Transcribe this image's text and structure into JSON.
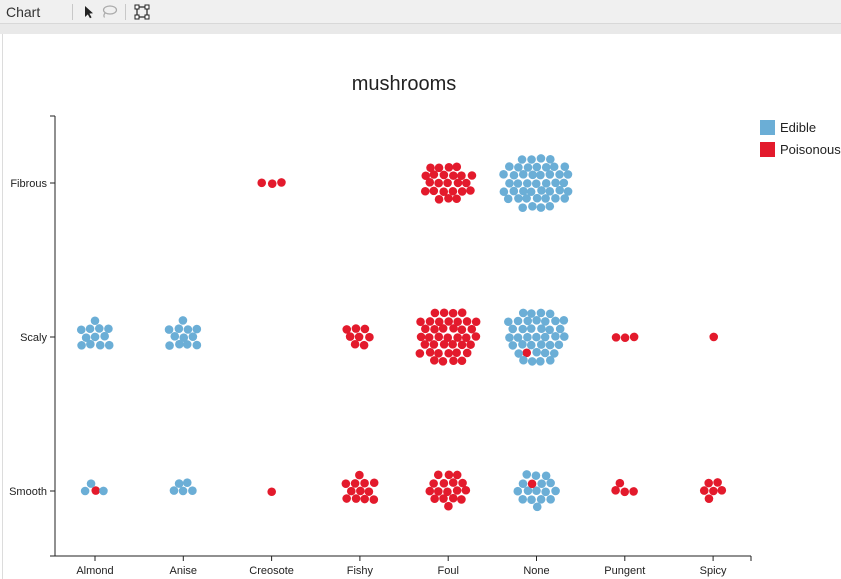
{
  "toolbar": {
    "title": "Chart",
    "tools": [
      {
        "icon": "pointer-select-icon"
      },
      {
        "icon": "lasso-select-icon"
      },
      {
        "icon": "box-select-icon"
      }
    ]
  },
  "colors": {
    "edible": "#6baed6",
    "poisonous": "#e31a2c",
    "axis": "#222222"
  },
  "chart_data": {
    "type": "scatter",
    "subtype": "beeswarm",
    "title": "mushrooms",
    "x_categories": [
      "Almond",
      "Anise",
      "Creosote",
      "Fishy",
      "Foul",
      "None",
      "Pungent",
      "Spicy"
    ],
    "y_categories": [
      "Fibrous",
      "Scaly",
      "Smooth"
    ],
    "legend": {
      "placement": "top-right",
      "entries": [
        {
          "key": "edible",
          "label": "Edible"
        },
        {
          "key": "poisonous",
          "label": "Poisonous"
        }
      ]
    },
    "grid": false,
    "cells": [
      {
        "x": "Creosote",
        "y": "Fibrous",
        "edible": 0,
        "poisonous": 3
      },
      {
        "x": "Foul",
        "y": "Fibrous",
        "edible": 0,
        "poisonous": 24
      },
      {
        "x": "None",
        "y": "Fibrous",
        "edible": 45,
        "poisonous": 0
      },
      {
        "x": "Almond",
        "y": "Scaly",
        "edible": 12,
        "poisonous": 0
      },
      {
        "x": "Anise",
        "y": "Scaly",
        "edible": 12,
        "poisonous": 0
      },
      {
        "x": "Fishy",
        "y": "Scaly",
        "edible": 0,
        "poisonous": 8
      },
      {
        "x": "Foul",
        "y": "Scaly",
        "edible": 0,
        "poisonous": 40
      },
      {
        "x": "None",
        "y": "Scaly",
        "edible": 38,
        "poisonous": 1
      },
      {
        "x": "Pungent",
        "y": "Scaly",
        "edible": 0,
        "poisonous": 3
      },
      {
        "x": "Spicy",
        "y": "Scaly",
        "edible": 0,
        "poisonous": 1
      },
      {
        "x": "Almond",
        "y": "Smooth",
        "edible": 3,
        "poisonous": 1
      },
      {
        "x": "Anise",
        "y": "Smooth",
        "edible": 5,
        "poisonous": 0
      },
      {
        "x": "Creosote",
        "y": "Smooth",
        "edible": 0,
        "poisonous": 1
      },
      {
        "x": "Fishy",
        "y": "Smooth",
        "edible": 0,
        "poisonous": 12
      },
      {
        "x": "Foul",
        "y": "Smooth",
        "edible": 0,
        "poisonous": 17
      },
      {
        "x": "None",
        "y": "Smooth",
        "edible": 16,
        "poisonous": 1
      },
      {
        "x": "Pungent",
        "y": "Smooth",
        "edible": 0,
        "poisonous": 4
      },
      {
        "x": "Spicy",
        "y": "Smooth",
        "edible": 0,
        "poisonous": 6
      }
    ]
  }
}
